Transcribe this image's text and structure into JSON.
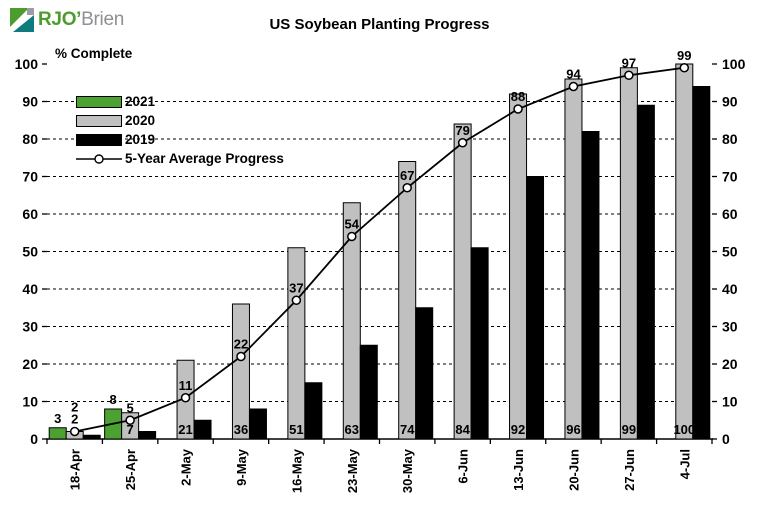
{
  "logo": {
    "part1": "RJO’",
    "part2": "Brien"
  },
  "header": {
    "title": "US Soybean Planting Progress"
  },
  "axes": {
    "y_label": "% Complete"
  },
  "legend": {
    "items": [
      "2021",
      "2020",
      "2019",
      "5-Year Average Progress"
    ]
  },
  "colors": {
    "green": "#4CA231",
    "gray": "#C0C0C0",
    "black": "#000000",
    "logo_green": "#4C9C2E",
    "logo_teal": "#0F7B7C",
    "logo_gray": "#9B9DA0",
    "logo_text_gray": "#8E9093"
  },
  "chart_data": {
    "type": "bar",
    "title": "US Soybean Planting Progress",
    "ylabel": "% Complete",
    "ylim": [
      0,
      100
    ],
    "yticks": [
      0,
      10,
      20,
      30,
      40,
      50,
      60,
      70,
      80,
      90,
      100
    ],
    "grid": "horizontal-dashed",
    "legend_position": "inside-top-left",
    "categories": [
      "18-Apr",
      "25-Apr",
      "2-May",
      "9-May",
      "16-May",
      "23-May",
      "30-May",
      "6-Jun",
      "13-Jun",
      "20-Jun",
      "27-Jun",
      "4-Jul"
    ],
    "series": [
      {
        "name": "2021",
        "kind": "bar",
        "color": "#4CA231",
        "values": [
          3,
          8,
          null,
          null,
          null,
          null,
          null,
          null,
          null,
          null,
          null,
          null
        ],
        "data_labels": "above"
      },
      {
        "name": "2020",
        "kind": "bar",
        "color": "#C0C0C0",
        "values": [
          2,
          7,
          21,
          36,
          51,
          63,
          74,
          84,
          92,
          96,
          99,
          100
        ],
        "data_labels": "inside-base"
      },
      {
        "name": "2019",
        "kind": "bar",
        "color": "#000000",
        "values": [
          1,
          2,
          5,
          8,
          15,
          25,
          35,
          51,
          70,
          82,
          89,
          94
        ],
        "data_labels": "none"
      },
      {
        "name": "5-Year Average Progress",
        "kind": "line",
        "color": "#000000",
        "marker": "open-circle",
        "values": [
          2,
          5,
          11,
          22,
          37,
          54,
          67,
          79,
          88,
          94,
          97,
          99
        ],
        "data_labels": "above"
      }
    ]
  }
}
